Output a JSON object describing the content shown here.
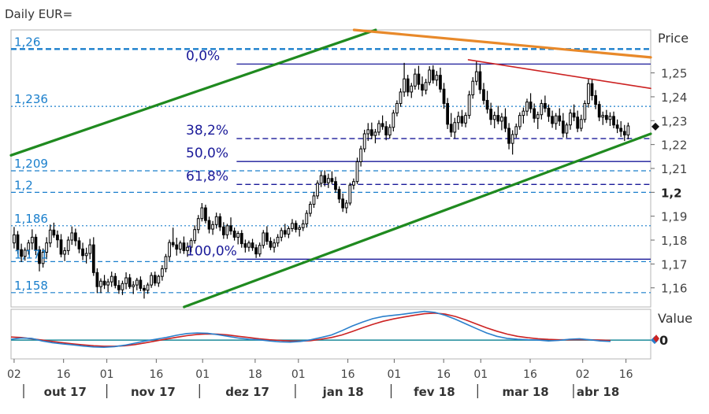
{
  "title": "Daily EUR=",
  "price_axis_title": "Price",
  "value_axis_title": "Value",
  "value_zero_label": "0",
  "colors": {
    "candle": "#000000",
    "fib": "#1a1a99",
    "level": "#1a7fcc",
    "channel": "#1f8a1f",
    "resistance": "#e8892a",
    "wedge": "#cc2222",
    "osc_blue": "#2a7fcc",
    "osc_red": "#cc2222",
    "zero_line": "#1a8a9a"
  },
  "chart_data": {
    "type": "candlestick",
    "y_range": [
      1.152,
      1.268
    ],
    "x_range_days": [
      0,
      207
    ],
    "price_ticks": [
      "1,25",
      "1,24",
      "1,23",
      "1,22",
      "1,21",
      "1,2",
      "1,19",
      "1,18",
      "1,17",
      "1,16"
    ],
    "price_tick_values": [
      1.25,
      1.24,
      1.23,
      1.22,
      1.21,
      1.2,
      1.19,
      1.18,
      1.17,
      1.16
    ],
    "bold_tick": "1,2",
    "horizontal_levels": [
      {
        "label": "1,26",
        "value": 1.26,
        "style": "dashed-bold"
      },
      {
        "label": "1,236",
        "value": 1.236,
        "style": "dotted"
      },
      {
        "label": "1,209",
        "value": 1.209,
        "style": "dashed"
      },
      {
        "label": "1,2",
        "value": 1.2,
        "style": "dashed"
      },
      {
        "label": "1,186",
        "value": 1.186,
        "style": "dotted"
      },
      {
        "label": "1,171",
        "value": 1.171,
        "style": "dashed"
      },
      {
        "label": "1,158",
        "value": 1.158,
        "style": "dashed"
      }
    ],
    "fibonacci": [
      {
        "label": "0,0%",
        "value": 1.2537,
        "style": "solid"
      },
      {
        "label": "38,2%",
        "value": 1.2225,
        "style": "dashed"
      },
      {
        "label": "50,0%",
        "value": 1.2129,
        "style": "solid"
      },
      {
        "label": "61,8%",
        "value": 1.2033,
        "style": "dashed"
      },
      {
        "label": "100,0%",
        "value": 1.172,
        "style": "solid"
      }
    ],
    "x_ticks": [
      "02",
      "16",
      "01",
      "16",
      "01",
      "18",
      "01",
      "16",
      "01",
      "16",
      "01",
      "16",
      "02",
      "16"
    ],
    "x_tick_days": [
      1,
      17,
      31,
      47,
      62,
      79,
      93,
      109,
      124,
      140,
      152,
      168,
      185,
      199
    ],
    "months": [
      "out 17",
      "nov 17",
      "dez 17",
      "jan 18",
      "fev 18",
      "mar 18",
      "abr 18"
    ],
    "month_start_days": [
      0,
      31,
      61,
      92,
      123,
      151,
      182
    ],
    "candles": [
      [
        1.1788,
        1.1855,
        1.1765,
        1.1822
      ],
      [
        1.1822,
        1.1838,
        1.1742,
        1.176
      ],
      [
        1.176,
        1.1785,
        1.1708,
        1.1732
      ],
      [
        1.1732,
        1.1769,
        1.1714,
        1.1758
      ],
      [
        1.1758,
        1.1801,
        1.1739,
        1.1788
      ],
      [
        1.1788,
        1.1845,
        1.176,
        1.1812
      ],
      [
        1.1812,
        1.1825,
        1.1737,
        1.1759
      ],
      [
        1.1759,
        1.1775,
        1.1669,
        1.1702
      ],
      [
        1.1702,
        1.1765,
        1.1685,
        1.1749
      ],
      [
        1.1749,
        1.1812,
        1.172,
        1.1788
      ],
      [
        1.1788,
        1.1865,
        1.177,
        1.1842
      ],
      [
        1.1842,
        1.1873,
        1.181,
        1.1821
      ],
      [
        1.1821,
        1.184,
        1.1768,
        1.1801
      ],
      [
        1.1801,
        1.1825,
        1.1728,
        1.1741
      ],
      [
        1.1741,
        1.177,
        1.1712,
        1.1756
      ],
      [
        1.1756,
        1.1815,
        1.1738,
        1.18
      ],
      [
        1.18,
        1.1857,
        1.178,
        1.183
      ],
      [
        1.183,
        1.1848,
        1.1775,
        1.1797
      ],
      [
        1.1797,
        1.1812,
        1.1745,
        1.1763
      ],
      [
        1.1763,
        1.1789,
        1.1716,
        1.1735
      ],
      [
        1.1735,
        1.1768,
        1.1702,
        1.1744
      ],
      [
        1.1744,
        1.1805,
        1.172,
        1.178
      ],
      [
        1.178,
        1.1812,
        1.165,
        1.1664
      ],
      [
        1.1664,
        1.1682,
        1.1578,
        1.1605
      ],
      [
        1.1605,
        1.164,
        1.1578,
        1.1628
      ],
      [
        1.1628,
        1.1654,
        1.1595,
        1.1612
      ],
      [
        1.1612,
        1.1638,
        1.1582,
        1.1625
      ],
      [
        1.1625,
        1.1668,
        1.1604,
        1.1648
      ],
      [
        1.1648,
        1.1662,
        1.1598,
        1.161
      ],
      [
        1.161,
        1.1632,
        1.1575,
        1.1592
      ],
      [
        1.1592,
        1.163,
        1.157,
        1.1618
      ],
      [
        1.1618,
        1.1665,
        1.1594,
        1.1642
      ],
      [
        1.1642,
        1.1658,
        1.1596,
        1.1605
      ],
      [
        1.1605,
        1.1628,
        1.1574,
        1.1612
      ],
      [
        1.1612,
        1.1642,
        1.159,
        1.1632
      ],
      [
        1.1632,
        1.1648,
        1.1586,
        1.1598
      ],
      [
        1.1598,
        1.1612,
        1.1555,
        1.159
      ],
      [
        1.159,
        1.1622,
        1.1575,
        1.1612
      ],
      [
        1.1612,
        1.1665,
        1.16,
        1.1652
      ],
      [
        1.1652,
        1.1668,
        1.1608,
        1.162
      ],
      [
        1.162,
        1.1655,
        1.1604,
        1.1648
      ],
      [
        1.1648,
        1.1695,
        1.163,
        1.168
      ],
      [
        1.168,
        1.1742,
        1.1665,
        1.1731
      ],
      [
        1.1731,
        1.1802,
        1.1712,
        1.179
      ],
      [
        1.179,
        1.1852,
        1.177,
        1.178
      ],
      [
        1.178,
        1.181,
        1.1735,
        1.1762
      ],
      [
        1.1762,
        1.1798,
        1.1744,
        1.1788
      ],
      [
        1.1788,
        1.1815,
        1.1742,
        1.1756
      ],
      [
        1.1756,
        1.179,
        1.173,
        1.177
      ],
      [
        1.177,
        1.1808,
        1.175,
        1.1798
      ],
      [
        1.1798,
        1.1862,
        1.1785,
        1.1844
      ],
      [
        1.1844,
        1.1905,
        1.1828,
        1.189
      ],
      [
        1.189,
        1.1955,
        1.1878,
        1.1935
      ],
      [
        1.1935,
        1.1948,
        1.187,
        1.1882
      ],
      [
        1.1882,
        1.1898,
        1.1828,
        1.1846
      ],
      [
        1.1846,
        1.188,
        1.1822,
        1.1865
      ],
      [
        1.1865,
        1.1915,
        1.1848,
        1.1898
      ],
      [
        1.1898,
        1.1912,
        1.1838,
        1.1855
      ],
      [
        1.1855,
        1.1875,
        1.1805,
        1.1822
      ],
      [
        1.1822,
        1.1868,
        1.1805,
        1.186
      ],
      [
        1.186,
        1.1895,
        1.1822,
        1.1838
      ],
      [
        1.1838,
        1.1852,
        1.1798,
        1.1812
      ],
      [
        1.1812,
        1.1838,
        1.1782,
        1.1828
      ],
      [
        1.1828,
        1.1842,
        1.1768,
        1.1785
      ],
      [
        1.1785,
        1.1802,
        1.1748,
        1.177
      ],
      [
        1.177,
        1.1798,
        1.1752,
        1.1788
      ],
      [
        1.1788,
        1.1805,
        1.1755,
        1.1768
      ],
      [
        1.1768,
        1.1782,
        1.1725,
        1.1742
      ],
      [
        1.1742,
        1.179,
        1.173,
        1.1778
      ],
      [
        1.1778,
        1.1842,
        1.1765,
        1.183
      ],
      [
        1.183,
        1.1858,
        1.178,
        1.1795
      ],
      [
        1.1795,
        1.1812,
        1.1758,
        1.177
      ],
      [
        1.177,
        1.1805,
        1.1748,
        1.1788
      ],
      [
        1.1788,
        1.1825,
        1.1772,
        1.1812
      ],
      [
        1.1812,
        1.1852,
        1.1795,
        1.184
      ],
      [
        1.184,
        1.1868,
        1.1812,
        1.1825
      ],
      [
        1.1825,
        1.1858,
        1.1808,
        1.1848
      ],
      [
        1.1848,
        1.1888,
        1.1835,
        1.187
      ],
      [
        1.187,
        1.1882,
        1.1832,
        1.1845
      ],
      [
        1.1845,
        1.1862,
        1.1815,
        1.1852
      ],
      [
        1.1852,
        1.1885,
        1.1838,
        1.1868
      ],
      [
        1.1868,
        1.1925,
        1.1852,
        1.1912
      ],
      [
        1.1912,
        1.1962,
        1.1898,
        1.195
      ],
      [
        1.195,
        1.2002,
        1.1935,
        1.1985
      ],
      [
        1.1985,
        1.205,
        1.1972,
        1.2038
      ],
      [
        1.2038,
        1.2088,
        1.2022,
        1.207
      ],
      [
        1.207,
        1.2092,
        1.2025,
        1.204
      ],
      [
        1.204,
        1.2078,
        1.2018,
        1.2058
      ],
      [
        1.2058,
        1.2088,
        1.2035,
        1.2045
      ],
      [
        1.2045,
        1.2065,
        1.1998,
        1.2012
      ],
      [
        1.2012,
        1.2025,
        1.1955,
        1.1972
      ],
      [
        1.1972,
        1.1995,
        1.1918,
        1.1935
      ],
      [
        1.1935,
        1.1968,
        1.1912,
        1.1955
      ],
      [
        1.1955,
        1.204,
        1.1945,
        1.203
      ],
      [
        1.203,
        1.2058,
        1.2012,
        1.2045
      ],
      [
        1.2045,
        1.2145,
        1.2035,
        1.2128
      ],
      [
        1.2128,
        1.2195,
        1.2108,
        1.2182
      ],
      [
        1.2182,
        1.2262,
        1.2168,
        1.2245
      ],
      [
        1.2245,
        1.229,
        1.2215,
        1.2262
      ],
      [
        1.2262,
        1.2292,
        1.2222,
        1.2238
      ],
      [
        1.2238,
        1.2265,
        1.2205,
        1.2252
      ],
      [
        1.2252,
        1.2302,
        1.2238,
        1.2288
      ],
      [
        1.2288,
        1.2322,
        1.2262,
        1.2275
      ],
      [
        1.2275,
        1.2298,
        1.2218,
        1.224
      ],
      [
        1.224,
        1.2285,
        1.2225,
        1.2272
      ],
      [
        1.2272,
        1.2345,
        1.2255,
        1.2332
      ],
      [
        1.2332,
        1.2385,
        1.2318,
        1.2372
      ],
      [
        1.2372,
        1.2435,
        1.2358,
        1.242
      ],
      [
        1.242,
        1.2542,
        1.24,
        1.2475
      ],
      [
        1.2475,
        1.2492,
        1.2402,
        1.242
      ],
      [
        1.242,
        1.2458,
        1.2395,
        1.2445
      ],
      [
        1.2445,
        1.2518,
        1.243,
        1.2495
      ],
      [
        1.2495,
        1.253,
        1.243,
        1.2452
      ],
      [
        1.2452,
        1.2485,
        1.2402,
        1.2428
      ],
      [
        1.2428,
        1.2475,
        1.241,
        1.246
      ],
      [
        1.246,
        1.2528,
        1.2448,
        1.2512
      ],
      [
        1.2512,
        1.2532,
        1.2455,
        1.247
      ],
      [
        1.247,
        1.2508,
        1.2445,
        1.249
      ],
      [
        1.249,
        1.2522,
        1.2418,
        1.2432
      ],
      [
        1.2432,
        1.2458,
        1.235,
        1.2372
      ],
      [
        1.2372,
        1.2395,
        1.2265,
        1.2285
      ],
      [
        1.2285,
        1.2332,
        1.2232,
        1.2252
      ],
      [
        1.2252,
        1.2312,
        1.2225,
        1.2292
      ],
      [
        1.2292,
        1.2338,
        1.2262,
        1.2318
      ],
      [
        1.2318,
        1.2345,
        1.2275,
        1.229
      ],
      [
        1.229,
        1.2335,
        1.2272,
        1.2322
      ],
      [
        1.2322,
        1.2425,
        1.2308,
        1.2408
      ],
      [
        1.2408,
        1.2482,
        1.2392,
        1.2465
      ],
      [
        1.2465,
        1.2548,
        1.2448,
        1.2505
      ],
      [
        1.2505,
        1.2535,
        1.2412,
        1.243
      ],
      [
        1.243,
        1.2458,
        1.2368,
        1.2385
      ],
      [
        1.2385,
        1.2425,
        1.233,
        1.2348
      ],
      [
        1.2348,
        1.2375,
        1.2282,
        1.2305
      ],
      [
        1.2305,
        1.2338,
        1.2268,
        1.2322
      ],
      [
        1.2322,
        1.2362,
        1.2285,
        1.2298
      ],
      [
        1.2298,
        1.2332,
        1.226,
        1.2315
      ],
      [
        1.2315,
        1.2352,
        1.2252,
        1.2268
      ],
      [
        1.2268,
        1.229,
        1.218,
        1.2205
      ],
      [
        1.2205,
        1.226,
        1.2158,
        1.2242
      ],
      [
        1.2242,
        1.2288,
        1.2228,
        1.2275
      ],
      [
        1.2275,
        1.2335,
        1.2262,
        1.2322
      ],
      [
        1.2322,
        1.2355,
        1.2288,
        1.234
      ],
      [
        1.234,
        1.2392,
        1.232,
        1.2378
      ],
      [
        1.2378,
        1.2415,
        1.2332,
        1.235
      ],
      [
        1.235,
        1.2372,
        1.2292,
        1.231
      ],
      [
        1.231,
        1.2338,
        1.2265,
        1.2325
      ],
      [
        1.2325,
        1.2388,
        1.2305,
        1.2372
      ],
      [
        1.2372,
        1.2405,
        1.2335,
        1.2352
      ],
      [
        1.2352,
        1.2368,
        1.2295,
        1.2318
      ],
      [
        1.2318,
        1.2342,
        1.227,
        1.2288
      ],
      [
        1.2288,
        1.2332,
        1.2262,
        1.232
      ],
      [
        1.232,
        1.2352,
        1.2278,
        1.2298
      ],
      [
        1.2298,
        1.2332,
        1.223,
        1.2248
      ],
      [
        1.2248,
        1.2292,
        1.2228,
        1.2282
      ],
      [
        1.2282,
        1.2348,
        1.2262,
        1.2332
      ],
      [
        1.2332,
        1.2368,
        1.2298,
        1.2315
      ],
      [
        1.2315,
        1.2342,
        1.2252,
        1.2268
      ],
      [
        1.2268,
        1.2325,
        1.2255,
        1.2305
      ],
      [
        1.2305,
        1.2385,
        1.2292,
        1.2372
      ],
      [
        1.2372,
        1.2475,
        1.2355,
        1.2455
      ],
      [
        1.2455,
        1.2472,
        1.2385,
        1.2405
      ],
      [
        1.2405,
        1.2428,
        1.2348,
        1.2368
      ],
      [
        1.2368,
        1.2382,
        1.2298,
        1.2315
      ],
      [
        1.2315,
        1.2338,
        1.2282,
        1.2322
      ],
      [
        1.2322,
        1.2345,
        1.229,
        1.2305
      ],
      [
        1.2305,
        1.2335,
        1.2278,
        1.2318
      ],
      [
        1.2318,
        1.2338,
        1.2268,
        1.2282
      ],
      [
        1.2282,
        1.2305,
        1.2248,
        1.2268
      ],
      [
        1.2268,
        1.2298,
        1.2232,
        1.2255
      ],
      [
        1.2255,
        1.2282,
        1.2215,
        1.224
      ],
      [
        1.224,
        1.2292,
        1.2222,
        1.2278
      ]
    ],
    "channel_lower": {
      "d1": 56,
      "v1": 1.152,
      "d2": 207,
      "v2": 1.2245
    },
    "channel_upper": {
      "d1": 0,
      "v1": 1.2155,
      "d2": 118,
      "v2": 1.268
    },
    "resistance_line": {
      "d1": 111,
      "v1": 1.268,
      "d2": 207,
      "v2": 1.2565
    },
    "wedge_line": {
      "d1": 148,
      "v1": 1.2555,
      "d2": 207,
      "v2": 1.2435
    },
    "last_price_marker": 1.2275,
    "oscillator": {
      "zero": 0,
      "range": [
        -1.1,
        1.8
      ],
      "blue": [
        0.05,
        0.12,
        0.1,
        -0.05,
        -0.15,
        -0.22,
        -0.28,
        -0.35,
        -0.4,
        -0.42,
        -0.38,
        -0.3,
        -0.18,
        -0.05,
        0.05,
        0.15,
        0.28,
        0.38,
        0.42,
        0.4,
        0.32,
        0.22,
        0.12,
        0.05,
        0.02,
        -0.05,
        -0.1,
        -0.12,
        -0.08,
        0.02,
        0.15,
        0.3,
        0.55,
        0.82,
        1.05,
        1.25,
        1.38,
        1.45,
        1.52,
        1.6,
        1.68,
        1.62,
        1.45,
        1.22,
        0.95,
        0.68,
        0.42,
        0.22,
        0.1,
        0.05,
        0.02,
        0.0,
        -0.05,
        -0.02,
        0.05,
        0.08,
        0.02,
        -0.05,
        -0.08
      ],
      "red": [
        0.18,
        0.15,
        0.08,
        0.0,
        -0.08,
        -0.15,
        -0.22,
        -0.28,
        -0.33,
        -0.36,
        -0.36,
        -0.33,
        -0.26,
        -0.16,
        -0.05,
        0.06,
        0.16,
        0.26,
        0.33,
        0.36,
        0.35,
        0.3,
        0.22,
        0.15,
        0.08,
        0.02,
        -0.02,
        -0.05,
        -0.06,
        -0.03,
        0.05,
        0.15,
        0.3,
        0.5,
        0.72,
        0.92,
        1.1,
        1.24,
        1.35,
        1.45,
        1.54,
        1.58,
        1.52,
        1.38,
        1.18,
        0.95,
        0.72,
        0.52,
        0.35,
        0.22,
        0.14,
        0.08,
        0.04,
        0.02,
        0.02,
        0.03,
        0.02,
        0.0,
        -0.02
      ]
    }
  }
}
